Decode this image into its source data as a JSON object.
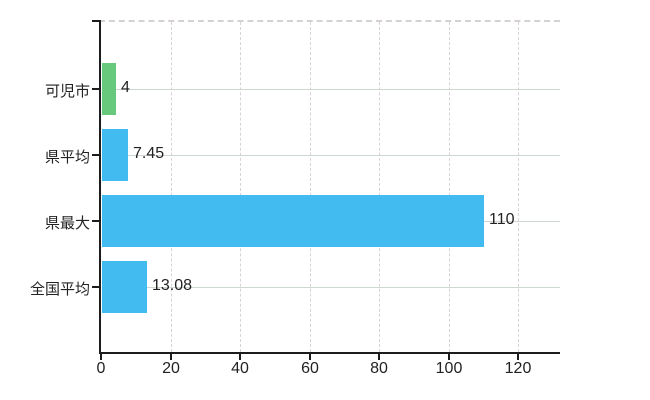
{
  "chart_data": {
    "type": "bar",
    "orientation": "horizontal",
    "categories": [
      "可児市",
      "県平均",
      "県最大",
      "全国平均"
    ],
    "values": [
      4,
      7.45,
      110,
      13.08
    ],
    "value_labels": [
      "4",
      "7.45",
      "110",
      "13.08"
    ],
    "bar_colors": [
      "#68c97c",
      "#42bcf0",
      "#42bcf0",
      "#42bcf0"
    ],
    "x_ticks": [
      0,
      20,
      40,
      60,
      80,
      100,
      120
    ],
    "x_tick_labels": [
      "0",
      "20",
      "40",
      "60",
      "80",
      "100",
      "120"
    ],
    "xlim": [
      0,
      132
    ],
    "grid": true,
    "legend_position": "none",
    "title": "",
    "xlabel": "",
    "ylabel": ""
  },
  "colors": {
    "background": "#ffffff",
    "bar_blue": "#42bcf0",
    "bar_green": "#68c97c",
    "axis": "#1c1c1c",
    "grid_horizontal": "#cfd8cf",
    "grid_vertical": "#d8d2d8",
    "plot_top_border": "#d4d0d4",
    "label_text": "#222222"
  }
}
